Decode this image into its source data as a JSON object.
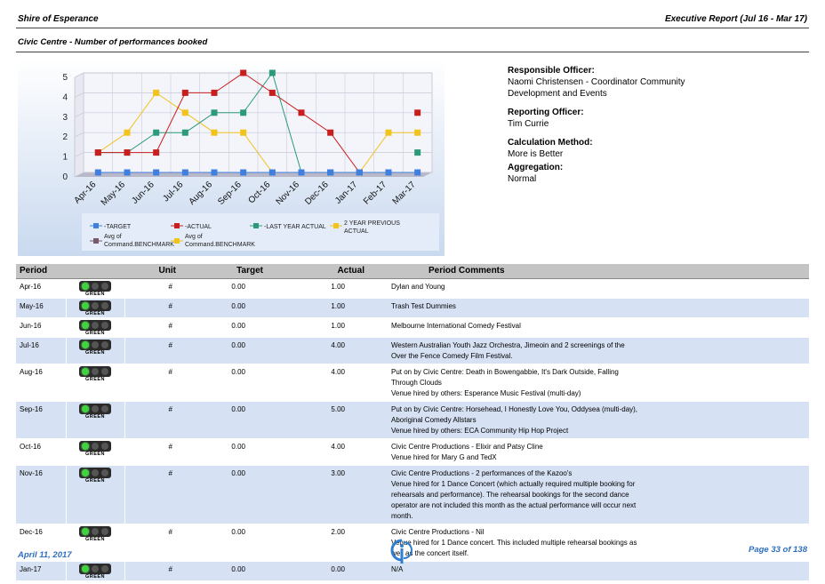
{
  "header": {
    "org": "Shire of Esperance",
    "report": "Executive Report (Jul 16 - Mar 17)",
    "subtitle": "Civic Centre - Number of performances booked"
  },
  "info": {
    "responsible_label": "Responsible Officer:",
    "responsible_value": "Naomi Christensen - Coordinator Community Development and Events",
    "reporting_label": "Reporting Officer:",
    "reporting_value": "Tim Currie",
    "calc_label": "Calculation Method:",
    "calc_value": "More is Better",
    "agg_label": "Aggregation:",
    "agg_value": "Normal"
  },
  "chart_data": {
    "type": "line",
    "categories": [
      "Apr-16",
      "May-16",
      "Jun-16",
      "Jul-16",
      "Aug-16",
      "Sep-16",
      "Oct-16",
      "Nov-16",
      "Dec-16",
      "Jan-17",
      "Feb-17",
      "Mar-17"
    ],
    "ylim": [
      0,
      5
    ],
    "yticks": [
      "0",
      "1",
      "2",
      "3",
      "4",
      "5"
    ],
    "grid": true,
    "legend_position": "bottom",
    "series": [
      {
        "name": "TARGET",
        "color": "#3f7fe0",
        "values": [
          0,
          0,
          0,
          0,
          0,
          0,
          0,
          0,
          0,
          0,
          0,
          0
        ]
      },
      {
        "name": "ACTUAL",
        "color": "#c81e1e",
        "values": [
          1,
          1,
          1,
          4,
          4,
          5,
          4,
          3,
          2,
          0,
          null,
          3
        ]
      },
      {
        "name": "LAST YEAR ACTUAL",
        "color": "#2a9a7a",
        "values": [
          1,
          1,
          2,
          2,
          3,
          3,
          5,
          0,
          0,
          0,
          null,
          1
        ]
      },
      {
        "name": "2 YEAR PREVIOUS ACTUAL",
        "color": "#f2c31a",
        "values": [
          1,
          2,
          4,
          3,
          2,
          2,
          0,
          0,
          0,
          0,
          2,
          2
        ]
      }
    ],
    "extra_legend": [
      {
        "name": "Avg of Command.BENCHMARK",
        "color": "#7a5a6a"
      },
      {
        "name": "Avg of Command.BENCHMARK",
        "color": "#f2c31a"
      }
    ]
  },
  "table": {
    "headers": {
      "period": "Period",
      "unit": "Unit",
      "target": "Target",
      "actual": "Actual",
      "comments": "Period Comments"
    },
    "status_label": "GREEN",
    "rows": [
      {
        "period": "Apr-16",
        "unit": "#",
        "target": "0.00",
        "actual": "1.00",
        "comments": [
          "Dylan and Young"
        ]
      },
      {
        "period": "May-16",
        "unit": "#",
        "target": "0.00",
        "actual": "1.00",
        "comments": [
          "Trash Test Dummies"
        ]
      },
      {
        "period": "Jun-16",
        "unit": "#",
        "target": "0.00",
        "actual": "1.00",
        "comments": [
          "Melbourne International Comedy Festival"
        ]
      },
      {
        "period": "Jul-16",
        "unit": "#",
        "target": "0.00",
        "actual": "4.00",
        "comments": [
          "Western Australian Youth Jazz Orchestra, Jimeoin and 2 screenings of the",
          "Over the Fence Comedy Film Festival."
        ]
      },
      {
        "period": "Aug-16",
        "unit": "#",
        "target": "0.00",
        "actual": "4.00",
        "comments": [
          "Put on by Civic Centre: Death in Bowengabbie, It's Dark Outside, Falling",
          "Through Clouds",
          "Venue hired by others: Esperance Music Festival (multi-day)"
        ]
      },
      {
        "period": "Sep-16",
        "unit": "#",
        "target": "0.00",
        "actual": "5.00",
        "comments": [
          "Put on by Civic Centre: Horsehead, I Honestly Love You, Oddysea (multi-day),",
          "Aboriginal Comedy Allstars",
          "Venue hired by others: ECA Community Hip Hop Project"
        ]
      },
      {
        "period": "Oct-16",
        "unit": "#",
        "target": "0.00",
        "actual": "4.00",
        "comments": [
          "Civic Centre Productions - Elixir and Patsy Cline",
          "Venue hired for Mary G and TedX"
        ]
      },
      {
        "period": "Nov-16",
        "unit": "#",
        "target": "0.00",
        "actual": "3.00",
        "comments": [
          "Civic Centre Productions - 2 performances of the Kazoo's",
          "Venue hired for 1 Dance Concert (which actually required multiple booking for",
          "rehearsals and performance). The rehearsal bookings for the second dance",
          "operator are not included this month as the actual performance will occur next",
          "month."
        ]
      },
      {
        "period": "Dec-16",
        "unit": "#",
        "target": "0.00",
        "actual": "2.00",
        "comments": [
          "Civic Centre Productions - Nil",
          "Venue hired for 1 Dance concert. This included multiple rehearsal bookings as",
          "well as the concert itself."
        ]
      },
      {
        "period": "Jan-17",
        "unit": "#",
        "target": "0.00",
        "actual": "0.00",
        "comments": [
          "N/A"
        ]
      }
    ]
  },
  "footer": {
    "date": "April 11, 2017",
    "page": "Page 33 of 138"
  }
}
